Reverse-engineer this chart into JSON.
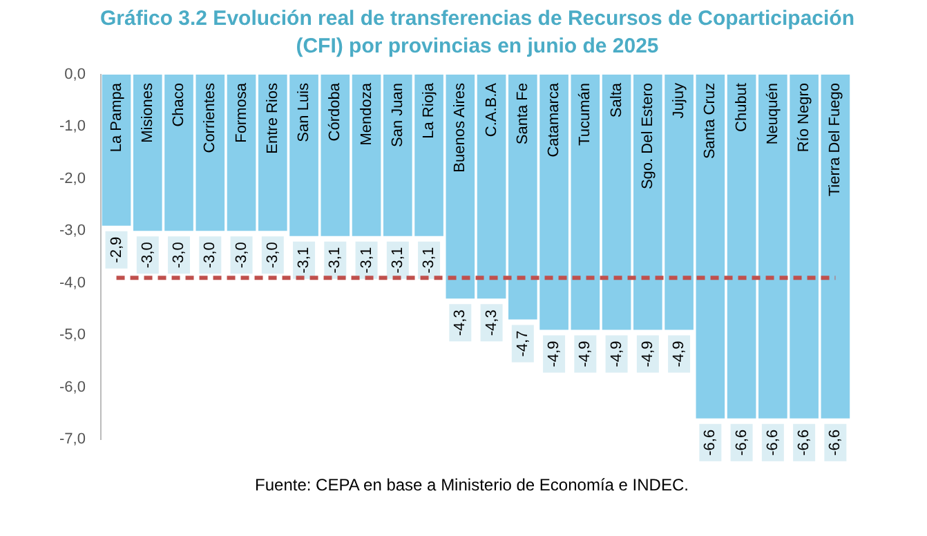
{
  "chart_data": {
    "type": "bar",
    "title": "Gráfico 3.2 Evolución real de transferencias de Recursos de Coparticipación (CFI) por provincias en junio de 2025",
    "categories": [
      "La Pampa",
      "Misiones",
      "Chaco",
      "Corrientes",
      "Formosa",
      "Entre Rios",
      "San Luis",
      "Córdoba",
      "Mendoza",
      "San Juan",
      "La Rioja",
      "Buenos Aires",
      "C.A.B.A",
      "Santa Fe",
      "Catamarca",
      "Tucumán",
      "Salta",
      "Sgo. Del Estero",
      "Jujuy",
      "Santa Cruz",
      "Chubut",
      "Neuquén",
      "Río Negro",
      "Tierra Del Fuego"
    ],
    "values": [
      -2.9,
      -3.0,
      -3.0,
      -3.0,
      -3.0,
      -3.0,
      -3.1,
      -3.1,
      -3.1,
      -3.1,
      -3.1,
      -4.3,
      -4.3,
      -4.7,
      -4.9,
      -4.9,
      -4.9,
      -4.9,
      -4.9,
      -6.6,
      -6.6,
      -6.6,
      -6.6,
      -6.6
    ],
    "value_labels": [
      "-2,9",
      "-3,0",
      "-3,0",
      "-3,0",
      "-3,0",
      "-3,0",
      "-3,1",
      "-3,1",
      "-3,1",
      "-3,1",
      "-3,1",
      "-4,3",
      "-4,3",
      "-4,7",
      "-4,9",
      "-4,9",
      "-4,9",
      "-4,9",
      "-4,9",
      "-6,6",
      "-6,6",
      "-6,6",
      "-6,6",
      "-6,6"
    ],
    "color": "#87ceeb",
    "ylim": [
      -7,
      0
    ],
    "yticks": [
      {
        "value": -7,
        "label": "-7,0"
      },
      {
        "value": -6,
        "label": "-6,0"
      },
      {
        "value": -5,
        "label": "-5,0"
      },
      {
        "value": -4,
        "label": "-4,0"
      },
      {
        "value": -3,
        "label": "-3,0"
      },
      {
        "value": -2,
        "label": "-2,0"
      },
      {
        "value": -1,
        "label": "-1,0"
      },
      {
        "value": 0,
        "label": "0,0"
      }
    ],
    "ref_lines": [
      {
        "axis": "y",
        "value": -3.9,
        "color": "#c0504d",
        "line_style": "dashed"
      }
    ],
    "grid": false,
    "legend": false,
    "annotations": [
      "Fuente: CEPA en base a Ministerio de Economía e INDEC."
    ]
  }
}
